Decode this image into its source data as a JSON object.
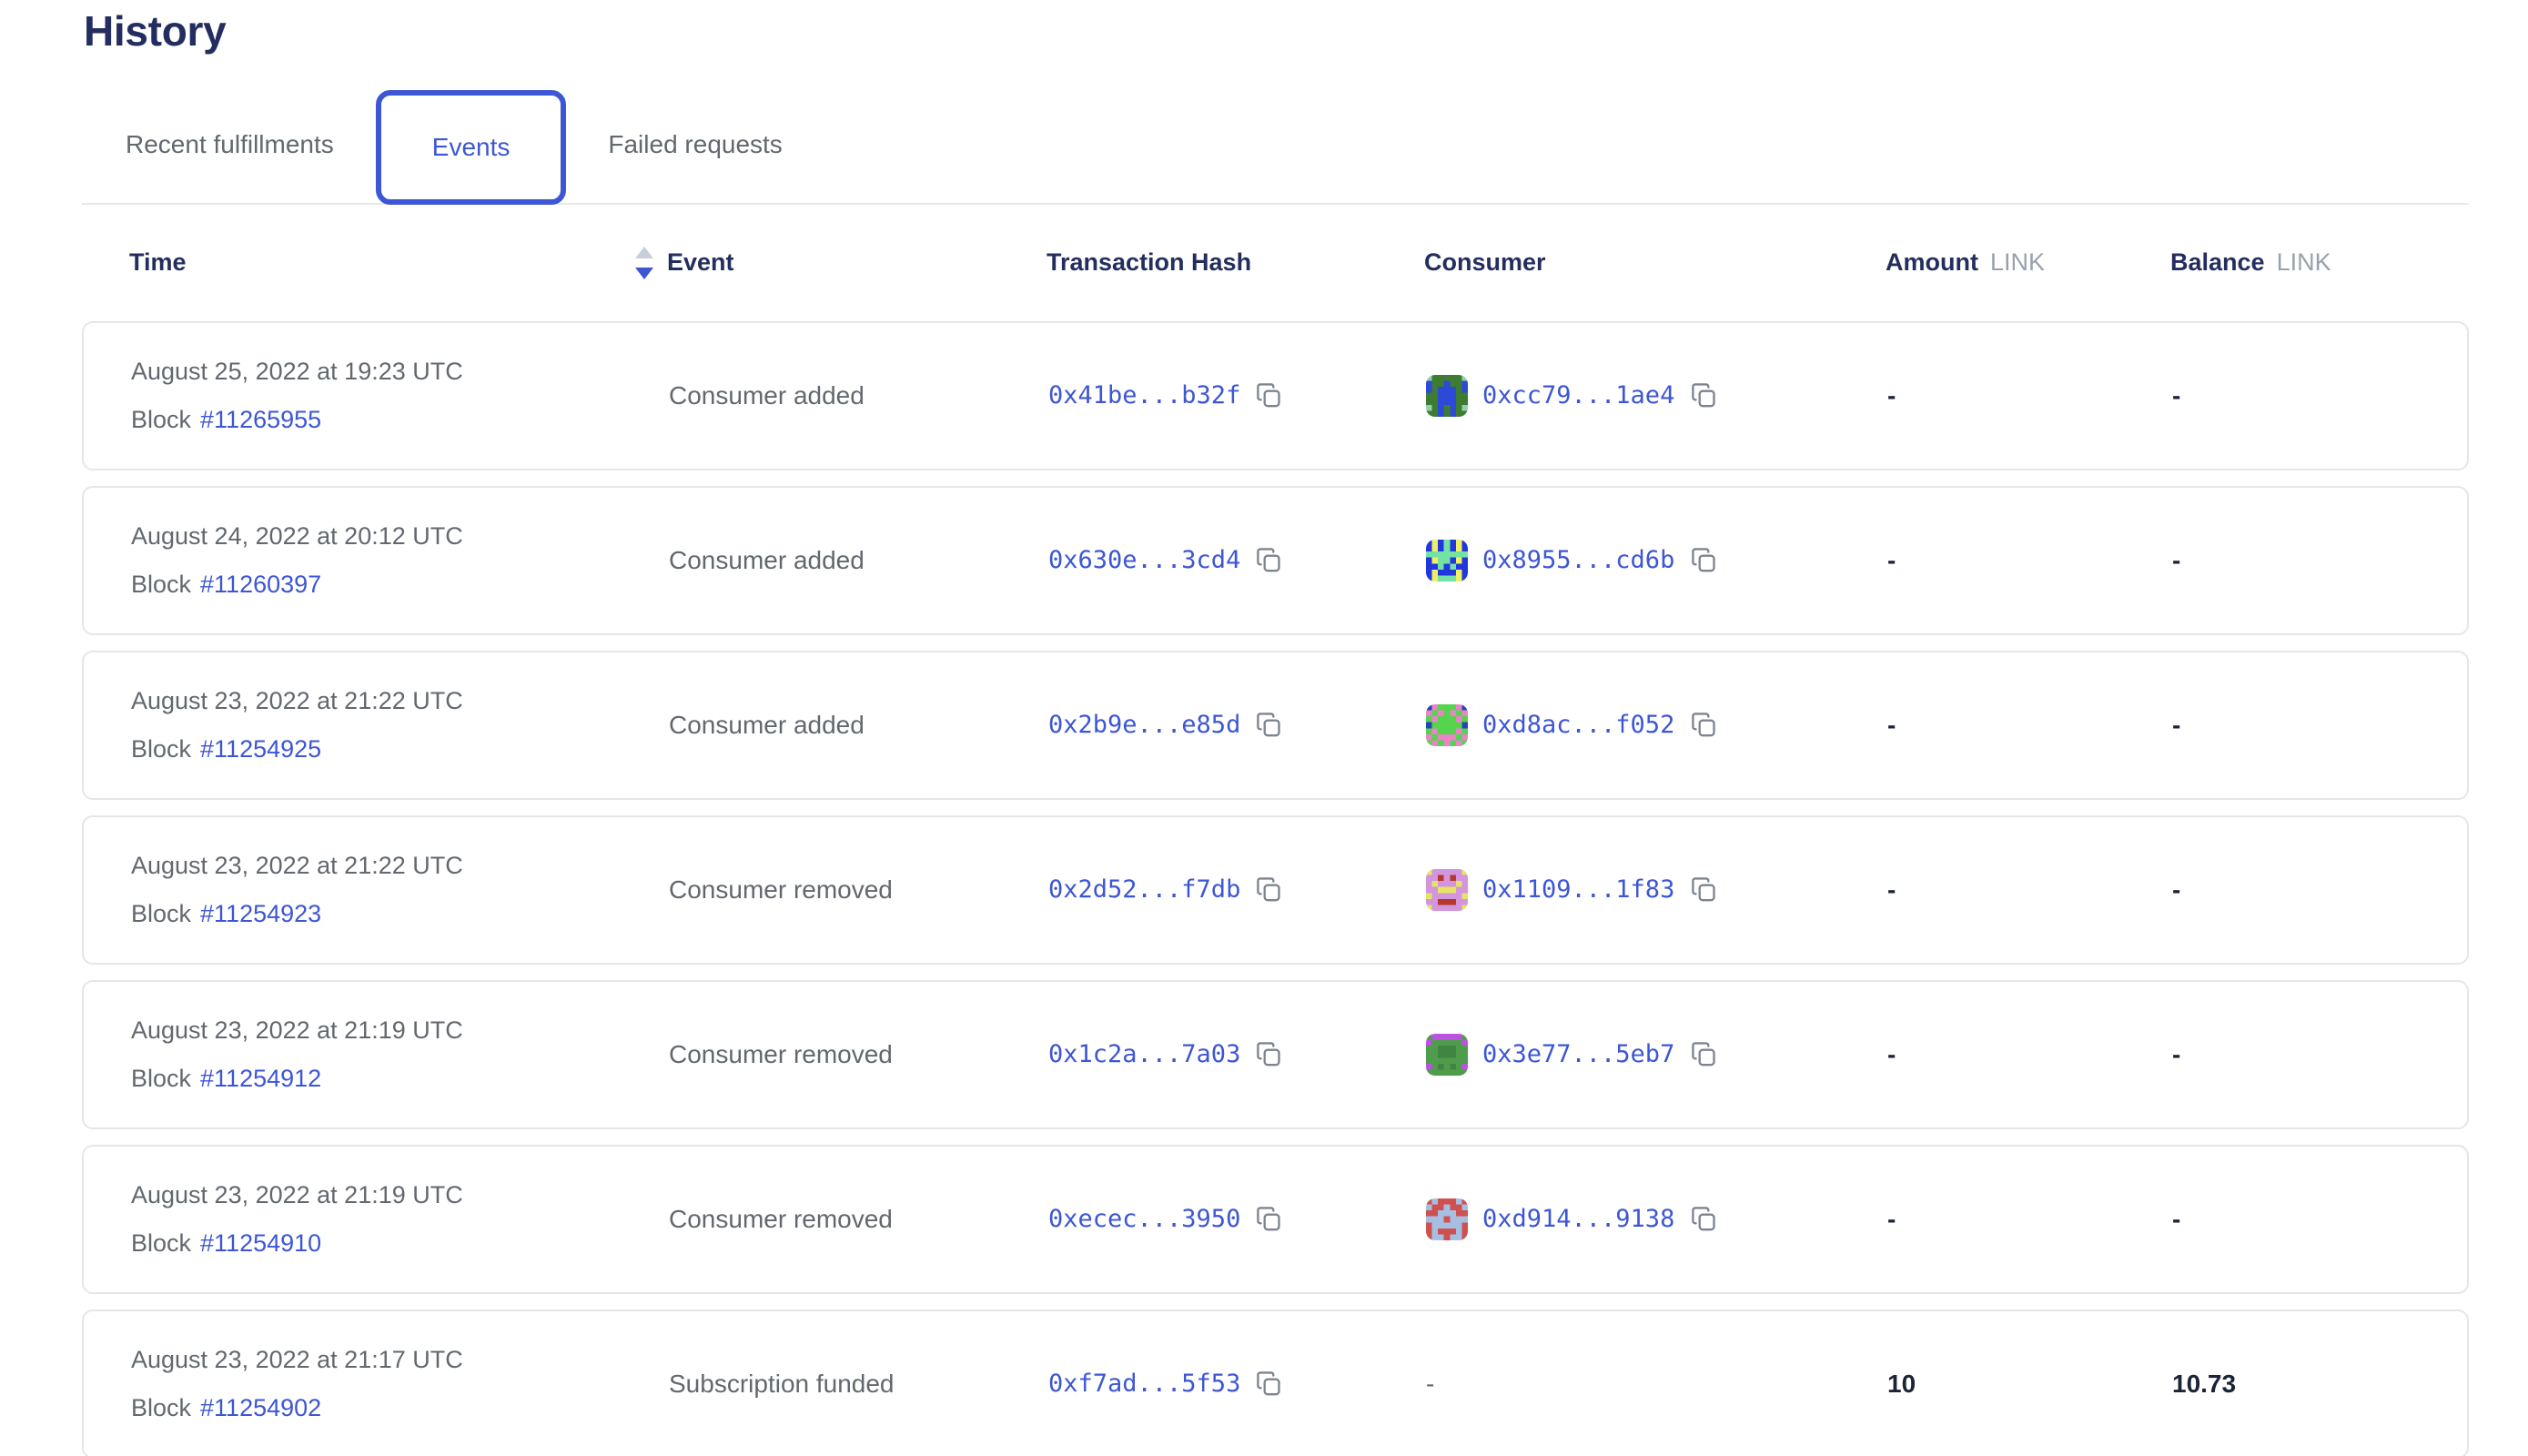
{
  "page": {
    "title": "History"
  },
  "tabs": [
    {
      "label": "Recent fulfillments",
      "active": false
    },
    {
      "label": "Events",
      "active": true
    },
    {
      "label": "Failed requests",
      "active": false
    }
  ],
  "table": {
    "headers": {
      "time": "Time",
      "event": "Event",
      "tx_hash": "Transaction Hash",
      "consumer": "Consumer",
      "amount": "Amount",
      "balance": "Balance",
      "link_unit": "LINK"
    },
    "sort": {
      "column": "Time",
      "direction": "descending"
    }
  },
  "colors": {
    "accent_blue": "#3d56d4",
    "heading_navy": "#232d5f",
    "body_gray": "#62686f",
    "value_dark": "#1b2336",
    "card_border": "#e6e6e9",
    "link_unit_gray": "#9aa1ad"
  },
  "rows": [
    {
      "date": "August 25, 2022 at 19:23 UTC",
      "block_label": "Block",
      "block_number": "#11265955",
      "event": "Consumer added",
      "tx_hash": "0x41be...b32f",
      "consumer": "0xcc79...1ae4",
      "amount": "-",
      "balance": "-",
      "identicon": {
        "palette": {
          "g": "#3e7b33",
          "b": "#2d49d8",
          "t": "#96cfae"
        },
        "grid": [
          "tgggggt",
          "bggbggb",
          "bgbbbgb",
          "ggbbbgg",
          "ggbbbgg",
          "tgbgbgt",
          "ggbgbgg"
        ]
      }
    },
    {
      "date": "August 24, 2022 at 20:12 UTC",
      "block_label": "Block",
      "block_number": "#11260397",
      "event": "Consumer added",
      "tx_hash": "0x630e...3cd4",
      "consumer": "0x8955...cd6b",
      "amount": "-",
      "balance": "-",
      "identicon": {
        "palette": {
          "b": "#2236e0",
          "y": "#eef063",
          "g": "#74e2a4"
        },
        "grid": [
          "bybgbyb",
          "bybgbyb",
          "ggggggg",
          "byggbyb",
          "bbgbgbb",
          "bybbbyb",
          "bygggyb"
        ]
      }
    },
    {
      "date": "August 23, 2022 at 21:22 UTC",
      "block_label": "Block",
      "block_number": "#11254925",
      "event": "Consumer added",
      "tx_hash": "0x2b9e...e85d",
      "consumer": "0xd8ac...f052",
      "amount": "-",
      "balance": "-",
      "identicon": {
        "palette": {
          "g": "#55d44e",
          "p": "#ec82c8",
          "n": "#2743bb"
        },
        "grid": [
          "npgggpn",
          "pgpgpgp",
          "gpgggpg",
          "ngggggn",
          "gpgggpg",
          "pgpppgp",
          "gpgpgpg"
        ]
      }
    },
    {
      "date": "August 23, 2022 at 21:22 UTC",
      "block_label": "Block",
      "block_number": "#11254923",
      "event": "Consumer removed",
      "tx_hash": "0x2d52...f7db",
      "consumer": "0x1109...1f83",
      "amount": "-",
      "balance": "-",
      "identicon": {
        "palette": {
          "o": "#d295de",
          "y": "#e7e464",
          "r": "#b2392b"
        },
        "grid": [
          "yoooooy",
          "oororoo",
          "oyoooyo",
          "ooyyyoo",
          "yoooooy",
          "oorrroo",
          "yoooooy"
        ]
      }
    },
    {
      "date": "August 23, 2022 at 21:19 UTC",
      "block_label": "Block",
      "block_number": "#11254912",
      "event": "Consumer removed",
      "tx_hash": "0x1c2a...7a03",
      "consumer": "0x3e77...5eb7",
      "amount": "-",
      "balance": "-",
      "identicon": {
        "palette": {
          "g": "#509c4d",
          "m": "#bb52e2",
          "d": "#418543"
        },
        "grid": [
          "gmmmmmg",
          "mgggggm",
          "ggdddgg",
          "ggdddgg",
          "ggggggg",
          "mgdgdgm",
          "ggggggg"
        ]
      }
    },
    {
      "date": "August 23, 2022 at 21:19 UTC",
      "block_label": "Block",
      "block_number": "#11254910",
      "event": "Consumer removed",
      "tx_hash": "0xecec...3950",
      "consumer": "0xd914...9138",
      "amount": "-",
      "balance": "-",
      "identicon": {
        "palette": {
          "r": "#ce5150",
          "l": "#a7bee3"
        },
        "grid": [
          "rlrrrlr",
          "lrrlrrl",
          "rrlllrr",
          "lllrlll",
          "rlllllr",
          "rlrrrlr",
          "rllrllr"
        ]
      }
    },
    {
      "date": "August 23, 2022 at 21:17 UTC",
      "block_label": "Block",
      "block_number": "#11254902",
      "event": "Subscription funded",
      "tx_hash": "0xf7ad...5f53",
      "consumer": "-",
      "amount": "10",
      "balance": "10.73",
      "identicon": null
    }
  ]
}
